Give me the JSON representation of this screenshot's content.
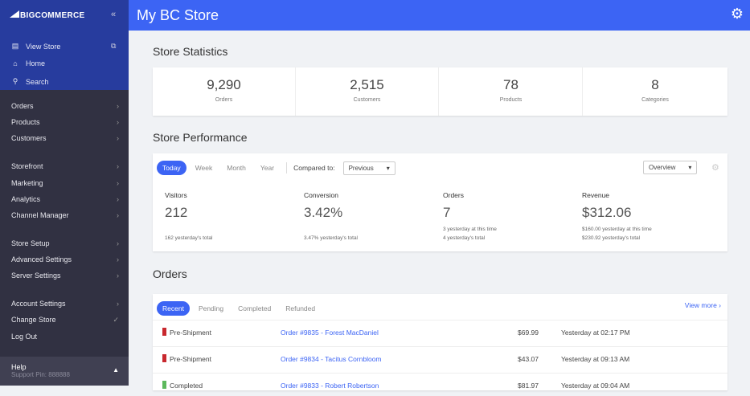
{
  "sidebar": {
    "logo": "BIGCOMMERCE",
    "top": [
      {
        "label": "View Store",
        "icon": "storefront-icon"
      },
      {
        "label": "Home",
        "icon": "home-icon"
      },
      {
        "label": "Search",
        "icon": "search-icon"
      }
    ],
    "nav": [
      "Orders",
      "Products",
      "Customers",
      "Storefront",
      "Marketing",
      "Analytics",
      "Channel Manager",
      "Store Setup",
      "Advanced Settings",
      "Server Settings",
      "Account Settings",
      "Change Store",
      "Log Out"
    ],
    "help": "Help",
    "support_pin": "Support Pin: 888888"
  },
  "header": {
    "title": "My BC Store"
  },
  "stats": {
    "title": "Store Statistics",
    "items": [
      {
        "value": "9,290",
        "label": "Orders"
      },
      {
        "value": "2,515",
        "label": "Customers"
      },
      {
        "value": "78",
        "label": "Products"
      },
      {
        "value": "8",
        "label": "Categories"
      }
    ]
  },
  "performance": {
    "title": "Store Performance",
    "tabs": [
      "Today",
      "Week",
      "Month",
      "Year"
    ],
    "compared_label": "Compared to:",
    "compared_value": "Previous",
    "view_value": "Overview",
    "metrics": [
      {
        "label": "Visitors",
        "value": "212",
        "sub1": "",
        "sub2": "162 yesterday's total"
      },
      {
        "label": "Conversion",
        "value": "3.42%",
        "sub1": "",
        "sub2": "3.47% yesterday's total"
      },
      {
        "label": "Orders",
        "value": "7",
        "sub1": "3 yesterday at this time",
        "sub2": "4 yesterday's total"
      },
      {
        "label": "Revenue",
        "value": "$312.06",
        "sub1": "$160.00 yesterday at this time",
        "sub2": "$230.92 yesterday's total"
      }
    ]
  },
  "orders": {
    "title": "Orders",
    "tabs": [
      "Recent",
      "Pending",
      "Completed",
      "Refunded"
    ],
    "view_more": "View more",
    "rows": [
      {
        "status": "Pre-Shipment",
        "color": "#c8282e",
        "order": "Order #9835 - Forest MacDaniel",
        "amount": "$69.99",
        "time": "Yesterday at 02:17 PM"
      },
      {
        "status": "Pre-Shipment",
        "color": "#c8282e",
        "order": "Order #9834 - Tacitus Cornbloom",
        "amount": "$43.07",
        "time": "Yesterday at 09:13 AM"
      },
      {
        "status": "Completed",
        "color": "#5cb85c",
        "order": "Order #9833 - Robert Robertson",
        "amount": "$81.97",
        "time": "Yesterday at 09:04 AM"
      }
    ]
  }
}
